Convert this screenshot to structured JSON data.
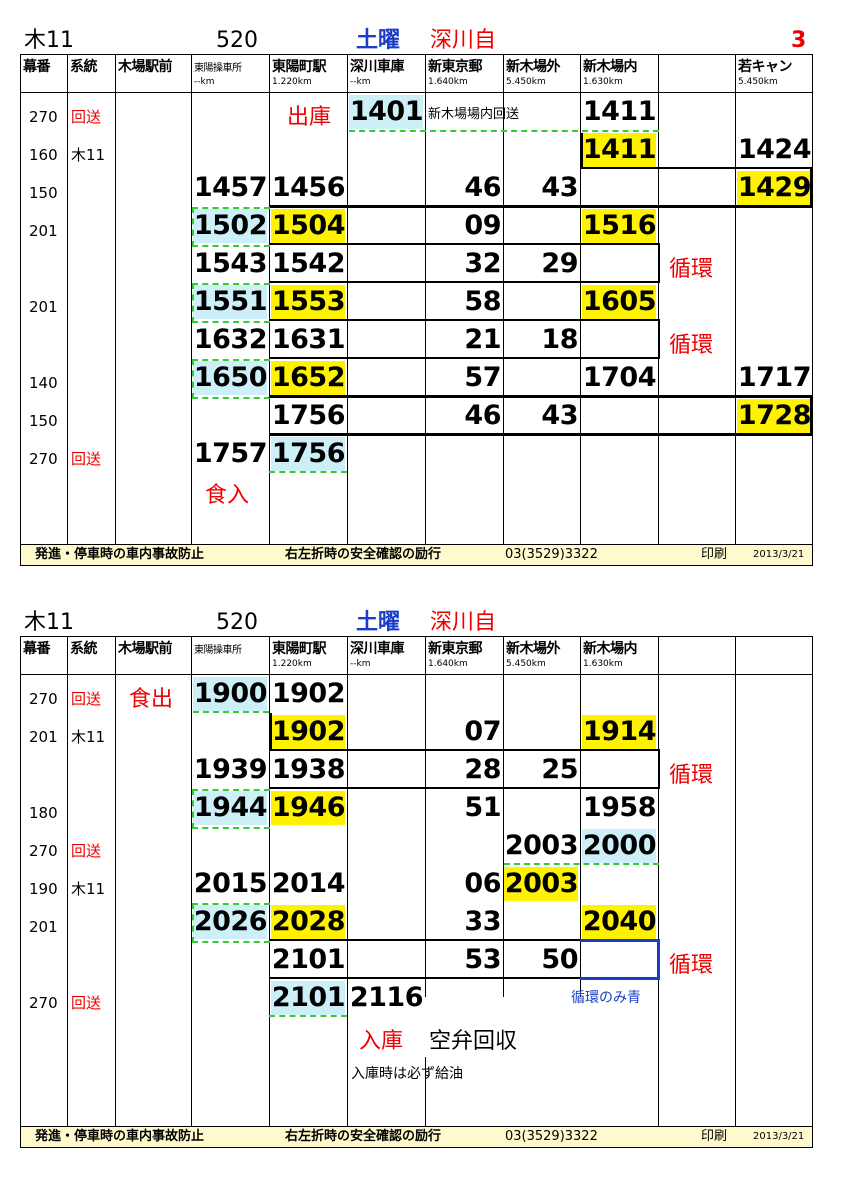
{
  "cards": [
    {
      "route_code": "木11",
      "vehicle": "520",
      "day": "土曜",
      "depot": "深川自",
      "page": "3",
      "headers": [
        "幕番",
        "系統",
        "木場駅前",
        "東陽操車所",
        "東陽町駅",
        "深川車庫",
        "新東京郵",
        "新木場外",
        "新木場内",
        "",
        "若キャン"
      ],
      "kms": [
        "",
        "",
        "",
        "--km",
        "1.220km",
        "--km",
        "1.640km",
        "5.450km",
        "1.630km",
        "",
        "5.450km"
      ],
      "rows": [
        {
          "maku": "270",
          "keito": "回送",
          "c_toyo_op": "",
          "c_toyomachi": "出庫",
          "c_fukagawa": "1401",
          "c_note": "新木場場内回送",
          "c_shinkiba_in": "1411",
          "c_wakakyan": ""
        },
        {
          "maku": "160",
          "keito": "木11",
          "c_shinkiba_in": "1411",
          "c_wakakyan": "1424"
        },
        {
          "maku": "150",
          "keito": "",
          "c_toyo_op": "1457",
          "c_toyomachi": "1456",
          "c_shintokyo": "46",
          "c_shinkiba_out": "43",
          "c_wakakyan": "1429"
        },
        {
          "maku": "201",
          "keito": "",
          "c_toyo_op": "1502",
          "c_toyomachi": "1504",
          "c_shintokyo": "09",
          "c_shinkiba_in": "1516"
        },
        {
          "maku": "",
          "keito": "",
          "c_toyo_op": "1543",
          "c_toyomachi": "1542",
          "c_shintokyo": "32",
          "c_shinkiba_out": "29",
          "loop": "循環"
        },
        {
          "maku": "201",
          "keito": "",
          "c_toyo_op": "1551",
          "c_toyomachi": "1553",
          "c_shintokyo": "58",
          "c_shinkiba_in": "1605"
        },
        {
          "maku": "",
          "keito": "",
          "c_toyo_op": "1632",
          "c_toyomachi": "1631",
          "c_shintokyo": "21",
          "c_shinkiba_out": "18",
          "loop": "循環"
        },
        {
          "maku": "140",
          "keito": "",
          "c_toyo_op": "1650",
          "c_toyomachi": "1652",
          "c_shintokyo": "57",
          "c_shinkiba_in": "1704",
          "c_wakakyan": "1717"
        },
        {
          "maku": "150",
          "keito": "",
          "c_toyomachi": "1756",
          "c_shintokyo": "46",
          "c_shinkiba_out": "43",
          "c_wakakyan": "1728"
        },
        {
          "maku": "270",
          "keito": "回送",
          "c_toyo_op": "1757",
          "c_toyomachi": "1756"
        }
      ],
      "shokunyu": "食入",
      "footer": {
        "safety1": "発進・停車時の車内事故防止",
        "safety2": "右左折時の安全確認の励行",
        "phone": "03(3529)3322",
        "print": "印刷",
        "date": "2013/3/21"
      }
    },
    {
      "route_code": "木11",
      "vehicle": "520",
      "day": "土曜",
      "depot": "深川自",
      "headers": [
        "幕番",
        "系統",
        "木場駅前",
        "東陽操車所",
        "東陽町駅",
        "深川車庫",
        "新東京郵",
        "新木場外",
        "新木場内",
        "",
        ""
      ],
      "kms": [
        "",
        "",
        "",
        "",
        "1.220km",
        "--km",
        "1.640km",
        "5.450km",
        "1.630km",
        "",
        ""
      ],
      "rows": [
        {
          "maku": "270",
          "keito": "回送",
          "c_kiba": "食出",
          "c_toyo_op": "1900",
          "c_toyomachi": "1902"
        },
        {
          "maku": "201",
          "keito": "木11",
          "c_toyomachi": "1902",
          "c_shintokyo": "07",
          "c_shinkiba_in": "1914"
        },
        {
          "maku": "",
          "keito": "",
          "c_toyo_op": "1939",
          "c_toyomachi": "1938",
          "c_shintokyo": "28",
          "c_shinkiba_out": "25",
          "loop": "循環"
        },
        {
          "maku": "180",
          "keito": "",
          "c_toyo_op": "1944",
          "c_toyomachi": "1946",
          "c_shintokyo": "51",
          "c_shinkiba_in": "1958"
        },
        {
          "maku": "270",
          "keito": "回送",
          "c_shinkiba_out": "2003",
          "c_shinkiba_in": "2000"
        },
        {
          "maku": "190",
          "keito": "木11",
          "c_toyo_op": "2015",
          "c_toyomachi": "2014",
          "c_shintokyo": "06",
          "c_shinkiba_out": "2003"
        },
        {
          "maku": "201",
          "keito": "",
          "c_toyo_op": "2026",
          "c_toyomachi": "2028",
          "c_shintokyo": "33",
          "c_shinkiba_in": "2040"
        },
        {
          "maku": "",
          "keito": "",
          "c_toyomachi": "2101",
          "c_shintokyo": "53",
          "c_shinkiba_out": "50",
          "loop": "循環"
        },
        {
          "maku": "270",
          "keito": "回送",
          "c_toyomachi": "2101",
          "c_fukagawa": "2116",
          "note_blue": "循環のみ青"
        }
      ],
      "nyuko": "入庫",
      "kuuben": "空弁回収",
      "kyuyu": "入庫時は必ず給油",
      "footer": {
        "safety1": "発進・停車時の車内事故防止",
        "safety2": "右左折時の安全確認の励行",
        "phone": "03(3529)3322",
        "print": "印刷",
        "date": "2013/3/21"
      }
    }
  ],
  "colors": {
    "yellow": "#fff200",
    "lightblue": "#cdeff8",
    "green_dash": "#33cc33",
    "red": "#ee0000",
    "blue": "#1a3cc8",
    "footer_bg": "#fffacd"
  }
}
